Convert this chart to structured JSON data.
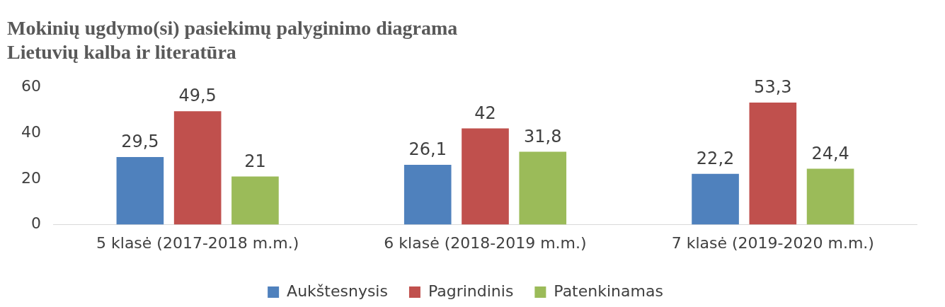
{
  "chart_data": {
    "type": "bar",
    "title": "Mokinių ugdymo(si) pasiekimų palyginimo diagrama",
    "subtitle": "Lietuvių kalba ir literatūra",
    "categories": [
      "5 klasė (2017-2018 m.m.)",
      "6 klasė (2018-2019 m.m.)",
      "7 klasė (2019-2020 m.m.)"
    ],
    "series": [
      {
        "name": "Aukštesnysis",
        "color": "#4f81bd",
        "values": [
          29.5,
          26.1,
          22.2
        ],
        "value_labels": [
          "29,5",
          "26,1",
          "22,2"
        ]
      },
      {
        "name": "Pagrindinis",
        "color": "#c0504d",
        "values": [
          49.5,
          42,
          53.3
        ],
        "value_labels": [
          "49,5",
          "42",
          "53,3"
        ]
      },
      {
        "name": "Patenkinamas",
        "color": "#9bbb59",
        "values": [
          21,
          31.8,
          24.4
        ],
        "value_labels": [
          "21",
          "31,8",
          "24,4"
        ]
      }
    ],
    "ylim": [
      0,
      60
    ],
    "yticks": [
      0,
      20,
      40,
      60
    ],
    "grid": false,
    "legend": "bottom"
  }
}
